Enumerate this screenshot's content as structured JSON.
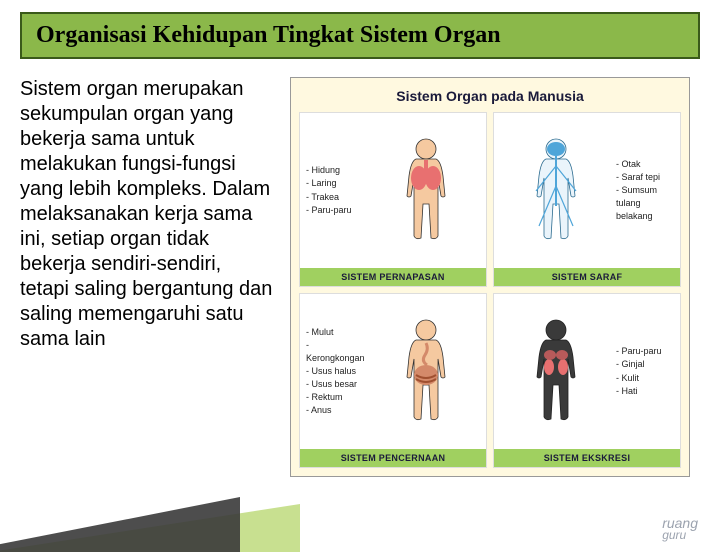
{
  "title": "Organisasi Kehidupan Tingkat Sistem Organ",
  "body_text": "Sistem organ merupakan sekumpulan organ yang bekerja sama untuk melakukan fungsi-fungsi yang lebih kompleks. Dalam melaksanakan kerja sama ini, setiap organ tidak bekerja sendiri-sendiri, tetapi saling bergantung dan saling memengaruhi satu sama lain",
  "figure": {
    "title": "Sistem Organ pada Manusia",
    "background_color": "#FFF9E0",
    "label_bg": "#A0D060",
    "panels": [
      {
        "label": "SISTEM PERNAPASAN",
        "items": [
          "- Hidung",
          "- Laring",
          "- Trakea",
          "- Paru-paru"
        ],
        "list_side": "left",
        "body_colors": {
          "skin": "#F5C9A0",
          "organ": "#E87070",
          "outline": "#333"
        }
      },
      {
        "label": "SISTEM SARAF",
        "items": [
          "- Otak",
          "- Saraf tepi",
          "- Sumsum tulang belakang"
        ],
        "list_side": "right",
        "body_colors": {
          "skin": "#EAF4FB",
          "organ": "#4EA5D9",
          "outline": "#2b6b8f"
        }
      },
      {
        "label": "SISTEM PENCERNAAN",
        "items": [
          "- Mulut",
          "- Kerongkongan",
          "- Usus halus",
          "- Usus besar",
          "- Rektum",
          "- Anus"
        ],
        "list_side": "left",
        "body_colors": {
          "skin": "#F5C9A0",
          "organ": "#D48A6A",
          "outline": "#333"
        }
      },
      {
        "label": "SISTEM EKSKRESI",
        "items": [
          "- Paru-paru",
          "- Ginjal",
          "- Kulit",
          "- Hati"
        ],
        "list_side": "right",
        "body_colors": {
          "skin": "#3a3a3a",
          "organ": "#E87070",
          "outline": "#222"
        }
      }
    ]
  },
  "watermark": {
    "line1": "ruang",
    "line2": "guru"
  }
}
